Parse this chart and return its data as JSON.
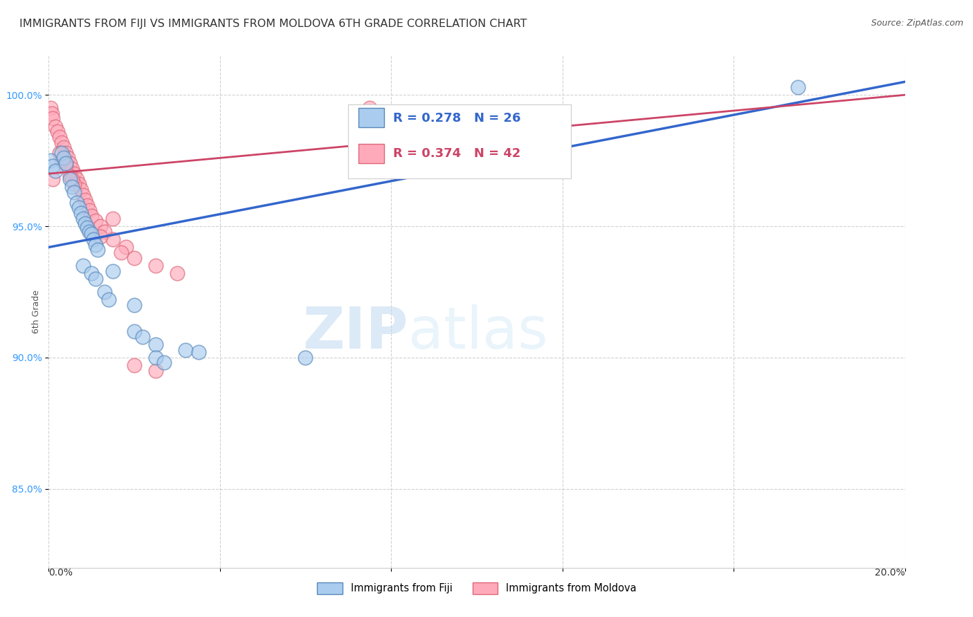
{
  "title": "IMMIGRANTS FROM FIJI VS IMMIGRANTS FROM MOLDOVA 6TH GRADE CORRELATION CHART",
  "source": "Source: ZipAtlas.com",
  "ylabel": "6th Grade",
  "xlim": [
    0.0,
    20.0
  ],
  "ylim": [
    82.0,
    101.5
  ],
  "yticks": [
    85.0,
    90.0,
    95.0,
    100.0
  ],
  "ytick_labels": [
    "85.0%",
    "90.0%",
    "95.0%",
    "100.0%"
  ],
  "fiji_color": "#aaccee",
  "fiji_edge_color": "#5588bb",
  "moldova_color": "#ffaabb",
  "moldova_edge_color": "#dd6677",
  "fiji_R": 0.278,
  "fiji_N": 26,
  "moldova_R": 0.374,
  "moldova_N": 42,
  "fiji_line_color": "#3366cc",
  "moldova_line_color": "#cc4466",
  "fiji_trend_x": [
    0.0,
    20.0
  ],
  "fiji_trend_y": [
    94.2,
    100.5
  ],
  "moldova_trend_x": [
    0.0,
    20.0
  ],
  "moldova_trend_y": [
    97.0,
    100.0
  ],
  "fiji_scatter": [
    [
      0.05,
      97.5
    ],
    [
      0.1,
      97.3
    ],
    [
      0.15,
      97.1
    ],
    [
      0.3,
      97.8
    ],
    [
      0.35,
      97.6
    ],
    [
      0.4,
      97.4
    ],
    [
      0.5,
      96.8
    ],
    [
      0.55,
      96.5
    ],
    [
      0.6,
      96.3
    ],
    [
      0.65,
      95.9
    ],
    [
      0.7,
      95.7
    ],
    [
      0.75,
      95.5
    ],
    [
      0.8,
      95.3
    ],
    [
      0.85,
      95.1
    ],
    [
      0.9,
      94.95
    ],
    [
      0.95,
      94.8
    ],
    [
      1.0,
      94.7
    ],
    [
      1.05,
      94.5
    ],
    [
      1.1,
      94.3
    ],
    [
      1.15,
      94.1
    ],
    [
      1.5,
      93.3
    ],
    [
      2.0,
      92.0
    ],
    [
      2.5,
      90.5
    ],
    [
      3.2,
      90.3
    ],
    [
      17.5,
      100.3
    ]
  ],
  "fiji_scatter_low": [
    [
      0.8,
      93.5
    ],
    [
      1.0,
      93.2
    ],
    [
      1.1,
      93.0
    ],
    [
      1.3,
      92.5
    ],
    [
      1.4,
      92.2
    ],
    [
      2.0,
      91.0
    ],
    [
      2.2,
      90.8
    ],
    [
      2.5,
      90.0
    ],
    [
      2.7,
      89.8
    ],
    [
      3.5,
      90.2
    ],
    [
      6.0,
      90.0
    ]
  ],
  "moldova_scatter": [
    [
      0.05,
      99.5
    ],
    [
      0.08,
      99.3
    ],
    [
      0.1,
      99.1
    ],
    [
      0.15,
      98.8
    ],
    [
      0.2,
      98.6
    ],
    [
      0.25,
      98.4
    ],
    [
      0.3,
      98.2
    ],
    [
      0.35,
      98.0
    ],
    [
      0.4,
      97.8
    ],
    [
      0.45,
      97.6
    ],
    [
      0.5,
      97.4
    ],
    [
      0.55,
      97.2
    ],
    [
      0.6,
      97.0
    ],
    [
      0.65,
      96.8
    ],
    [
      0.7,
      96.6
    ],
    [
      0.75,
      96.4
    ],
    [
      0.8,
      96.2
    ],
    [
      0.85,
      96.0
    ],
    [
      0.9,
      95.8
    ],
    [
      0.95,
      95.6
    ],
    [
      1.0,
      95.4
    ],
    [
      1.1,
      95.2
    ],
    [
      1.2,
      95.0
    ],
    [
      1.3,
      94.8
    ],
    [
      1.5,
      94.5
    ],
    [
      1.8,
      94.2
    ],
    [
      2.0,
      93.8
    ],
    [
      2.5,
      93.5
    ],
    [
      3.0,
      93.2
    ],
    [
      0.3,
      97.5
    ],
    [
      0.4,
      97.3
    ],
    [
      0.5,
      96.9
    ],
    [
      0.6,
      96.6
    ],
    [
      1.5,
      95.3
    ],
    [
      2.0,
      89.7
    ],
    [
      2.5,
      89.5
    ],
    [
      7.5,
      99.5
    ],
    [
      0.1,
      96.8
    ],
    [
      1.2,
      94.6
    ],
    [
      1.7,
      94.0
    ],
    [
      0.25,
      97.8
    ],
    [
      0.55,
      96.8
    ]
  ],
  "watermark_zip": "ZIP",
  "watermark_atlas": "atlas",
  "background_color": "#ffffff",
  "grid_color": "#cccccc",
  "title_fontsize": 11.5,
  "source_fontsize": 9,
  "tick_color": "#3399ff",
  "tick_fontsize": 10,
  "legend_fontsize": 13
}
